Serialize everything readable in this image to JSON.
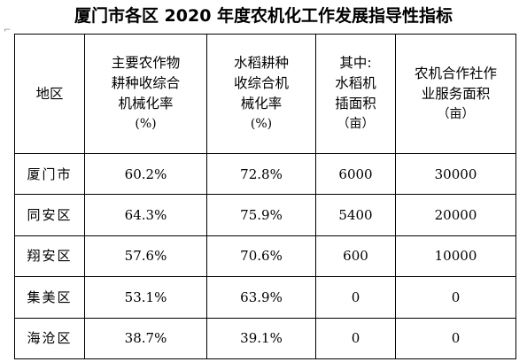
{
  "title": "厦门市各区 2020 年度农机化工作发展指导性指标",
  "table": {
    "headers": [
      {
        "lines": [
          "地区"
        ],
        "unit": ""
      },
      {
        "lines": [
          "主要农作物",
          "耕种收综合",
          "机械化率"
        ],
        "unit": "(%)"
      },
      {
        "lines": [
          "水稻耕种",
          "收综合机",
          "械化率"
        ],
        "unit": "(%)"
      },
      {
        "lines": [
          "其中:",
          "水稻机",
          "插面积"
        ],
        "unit": "（亩）"
      },
      {
        "lines": [
          "农机合作社作",
          "业服务面积"
        ],
        "unit": "（亩）"
      }
    ],
    "rows": [
      {
        "region": "厦门市",
        "crop_rate": "60.2%",
        "rice_rate": "72.8%",
        "rice_planting_area": "6000",
        "coop_service_area": "30000"
      },
      {
        "region": "同安区",
        "crop_rate": "64.3%",
        "rice_rate": "75.9%",
        "rice_planting_area": "5400",
        "coop_service_area": "20000"
      },
      {
        "region": "翔安区",
        "crop_rate": "57.6%",
        "rice_rate": "70.6%",
        "rice_planting_area": "600",
        "coop_service_area": "10000"
      },
      {
        "region": "集美区",
        "crop_rate": "53.1%",
        "rice_rate": "63.9%",
        "rice_planting_area": "0",
        "coop_service_area": "0"
      },
      {
        "region": "海沧区",
        "crop_rate": "38.7%",
        "rice_rate": "39.1%",
        "rice_planting_area": "0",
        "coop_service_area": "0"
      }
    ]
  }
}
